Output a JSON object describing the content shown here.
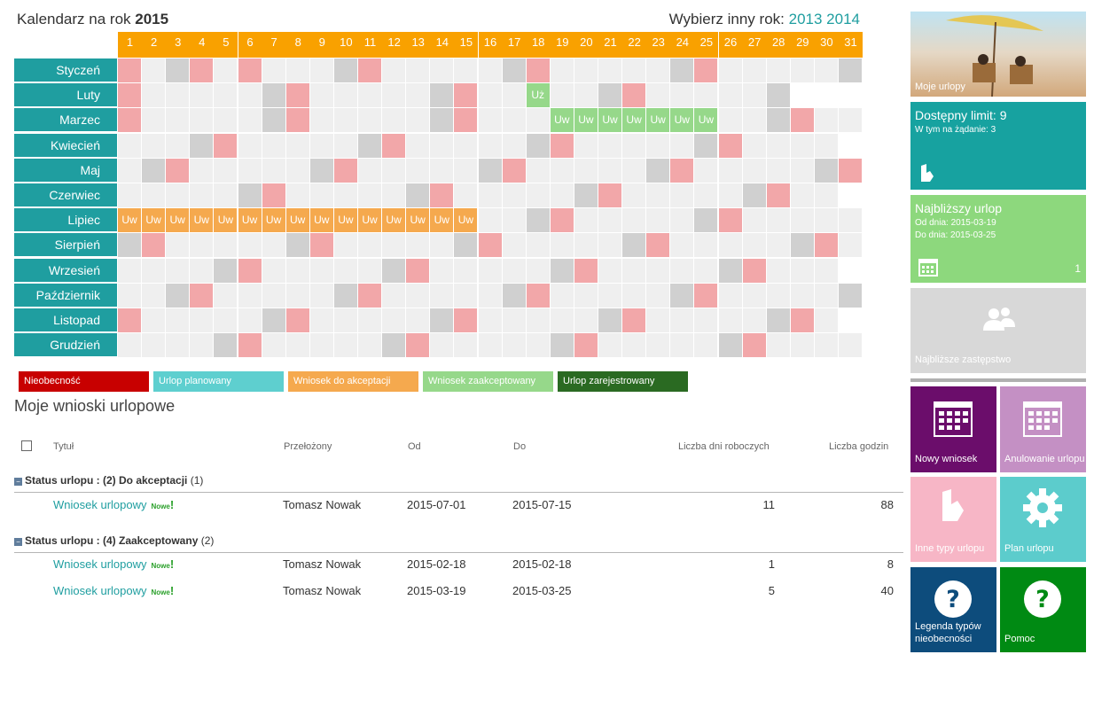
{
  "header": {
    "title_prefix": "Kalendarz na rok",
    "year": "2015",
    "year_select_label": "Wybierz inny rok:",
    "years": [
      "2013",
      "2014"
    ]
  },
  "calendar": {
    "days": [
      "1",
      "2",
      "3",
      "4",
      "5",
      "6",
      "7",
      "8",
      "9",
      "10",
      "11",
      "12",
      "13",
      "14",
      "15",
      "16",
      "17",
      "18",
      "19",
      "20",
      "21",
      "22",
      "23",
      "24",
      "25",
      "26",
      "27",
      "28",
      "29",
      "30",
      "31"
    ],
    "months": [
      {
        "name": "Styczeń",
        "len": 31,
        "weekend": [
          3,
          10,
          17,
          24,
          31
        ],
        "holiday": [
          1,
          4,
          6,
          11,
          18,
          25
        ]
      },
      {
        "name": "Luty",
        "len": 28,
        "weekend": [
          7,
          14,
          21,
          28
        ],
        "holiday": [
          1,
          8,
          15,
          22
        ],
        "za": [
          18
        ],
        "za_label": "Uż"
      },
      {
        "name": "Marzec",
        "len": 31,
        "weekend": [
          7,
          14,
          21,
          28
        ],
        "holiday": [
          1,
          8,
          15,
          29
        ],
        "za": [
          19,
          20,
          21,
          22,
          23,
          24,
          25
        ],
        "za_label": "Uw"
      },
      {
        "name": "Kwiecień",
        "len": 30,
        "weekend": [
          4,
          11,
          18,
          25
        ],
        "holiday": [
          5,
          12,
          19,
          26
        ]
      },
      {
        "name": "Maj",
        "len": 31,
        "weekend": [
          2,
          9,
          16,
          23,
          30
        ],
        "holiday": [
          3,
          10,
          17,
          24,
          31
        ]
      },
      {
        "name": "Czerwiec",
        "len": 30,
        "weekend": [
          6,
          13,
          20,
          27
        ],
        "holiday": [
          7,
          14,
          21,
          28
        ]
      },
      {
        "name": "Lipiec",
        "len": 31,
        "weekend": [
          18,
          25
        ],
        "holiday": [
          19,
          26
        ],
        "uw": [
          1,
          2,
          3,
          4,
          5,
          6,
          7,
          8,
          9,
          10,
          11,
          12,
          13,
          14,
          15
        ],
        "uw_label": "Uw"
      },
      {
        "name": "Sierpień",
        "len": 31,
        "weekend": [
          1,
          8,
          15,
          22,
          29
        ],
        "holiday": [
          2,
          9,
          16,
          23,
          30
        ]
      },
      {
        "name": "Wrzesień",
        "len": 30,
        "weekend": [
          5,
          12,
          19,
          26
        ],
        "holiday": [
          6,
          13,
          20,
          27
        ]
      },
      {
        "name": "Październik",
        "len": 31,
        "weekend": [
          3,
          10,
          17,
          24,
          31
        ],
        "holiday": [
          4,
          11,
          18,
          25
        ]
      },
      {
        "name": "Listopad",
        "len": 30,
        "weekend": [
          7,
          14,
          21,
          28
        ],
        "holiday": [
          1,
          8,
          15,
          22,
          29
        ]
      },
      {
        "name": "Grudzień",
        "len": 31,
        "weekend": [
          5,
          12,
          19,
          26
        ],
        "holiday": [
          6,
          13,
          20,
          27
        ]
      }
    ]
  },
  "legend": [
    {
      "label": "Nieobecność",
      "color": "#c80000"
    },
    {
      "label": "Urlop planowany",
      "color": "#5ecfcf"
    },
    {
      "label": "Wniosek do akceptacji",
      "color": "#f5a94e"
    },
    {
      "label": "Wniosek zaakceptowany",
      "color": "#96d88a"
    },
    {
      "label": "Urlop zarejestrowany",
      "color": "#2a6a22"
    }
  ],
  "requests": {
    "title": "Moje wnioski urlopowe",
    "columns": [
      "Tytuł",
      "Przełożony",
      "Od",
      "Do",
      "Liczba dni roboczych",
      "Liczba godzin"
    ],
    "groups": [
      {
        "label": "Status urlopu : (2) Do akceptacji",
        "count": "(1)",
        "rows": [
          {
            "title": "Wniosek urlopowy",
            "badge": "Nowe",
            "manager": "Tomasz Nowak",
            "from": "2015-07-01",
            "to": "2015-07-15",
            "days": "11",
            "hours": "88"
          }
        ]
      },
      {
        "label": "Status urlopu : (4) Zaakceptowany",
        "count": "(2)",
        "rows": [
          {
            "title": "Wniosek urlopowy",
            "badge": "Nowe",
            "manager": "Tomasz Nowak",
            "from": "2015-02-18",
            "to": "2015-02-18",
            "days": "1",
            "hours": "8"
          },
          {
            "title": "Wniosek urlopowy",
            "badge": "Nowe",
            "manager": "Tomasz Nowak",
            "from": "2015-03-19",
            "to": "2015-03-25",
            "days": "5",
            "hours": "40"
          }
        ]
      }
    ]
  },
  "tiles": {
    "my_leaves": "Moje urlopy",
    "limit_title": "Dostępny limit: 9",
    "limit_sub": "W tym na żądanie: 3",
    "next_title": "Najbliższy urlop",
    "next_from": "Od dnia: 2015-03-19",
    "next_to": "Do dnia: 2015-03-25",
    "next_count": "1",
    "substitute": "Najbliższe zastępstwo",
    "new_request": "Nowy wniosek",
    "cancel_leave": "Anulowanie urlopu",
    "other_types": "Inne typy urlopu",
    "leave_plan": "Plan urlopu",
    "legend_types": "Legenda typów nieobecności",
    "help": "Pomoc"
  }
}
